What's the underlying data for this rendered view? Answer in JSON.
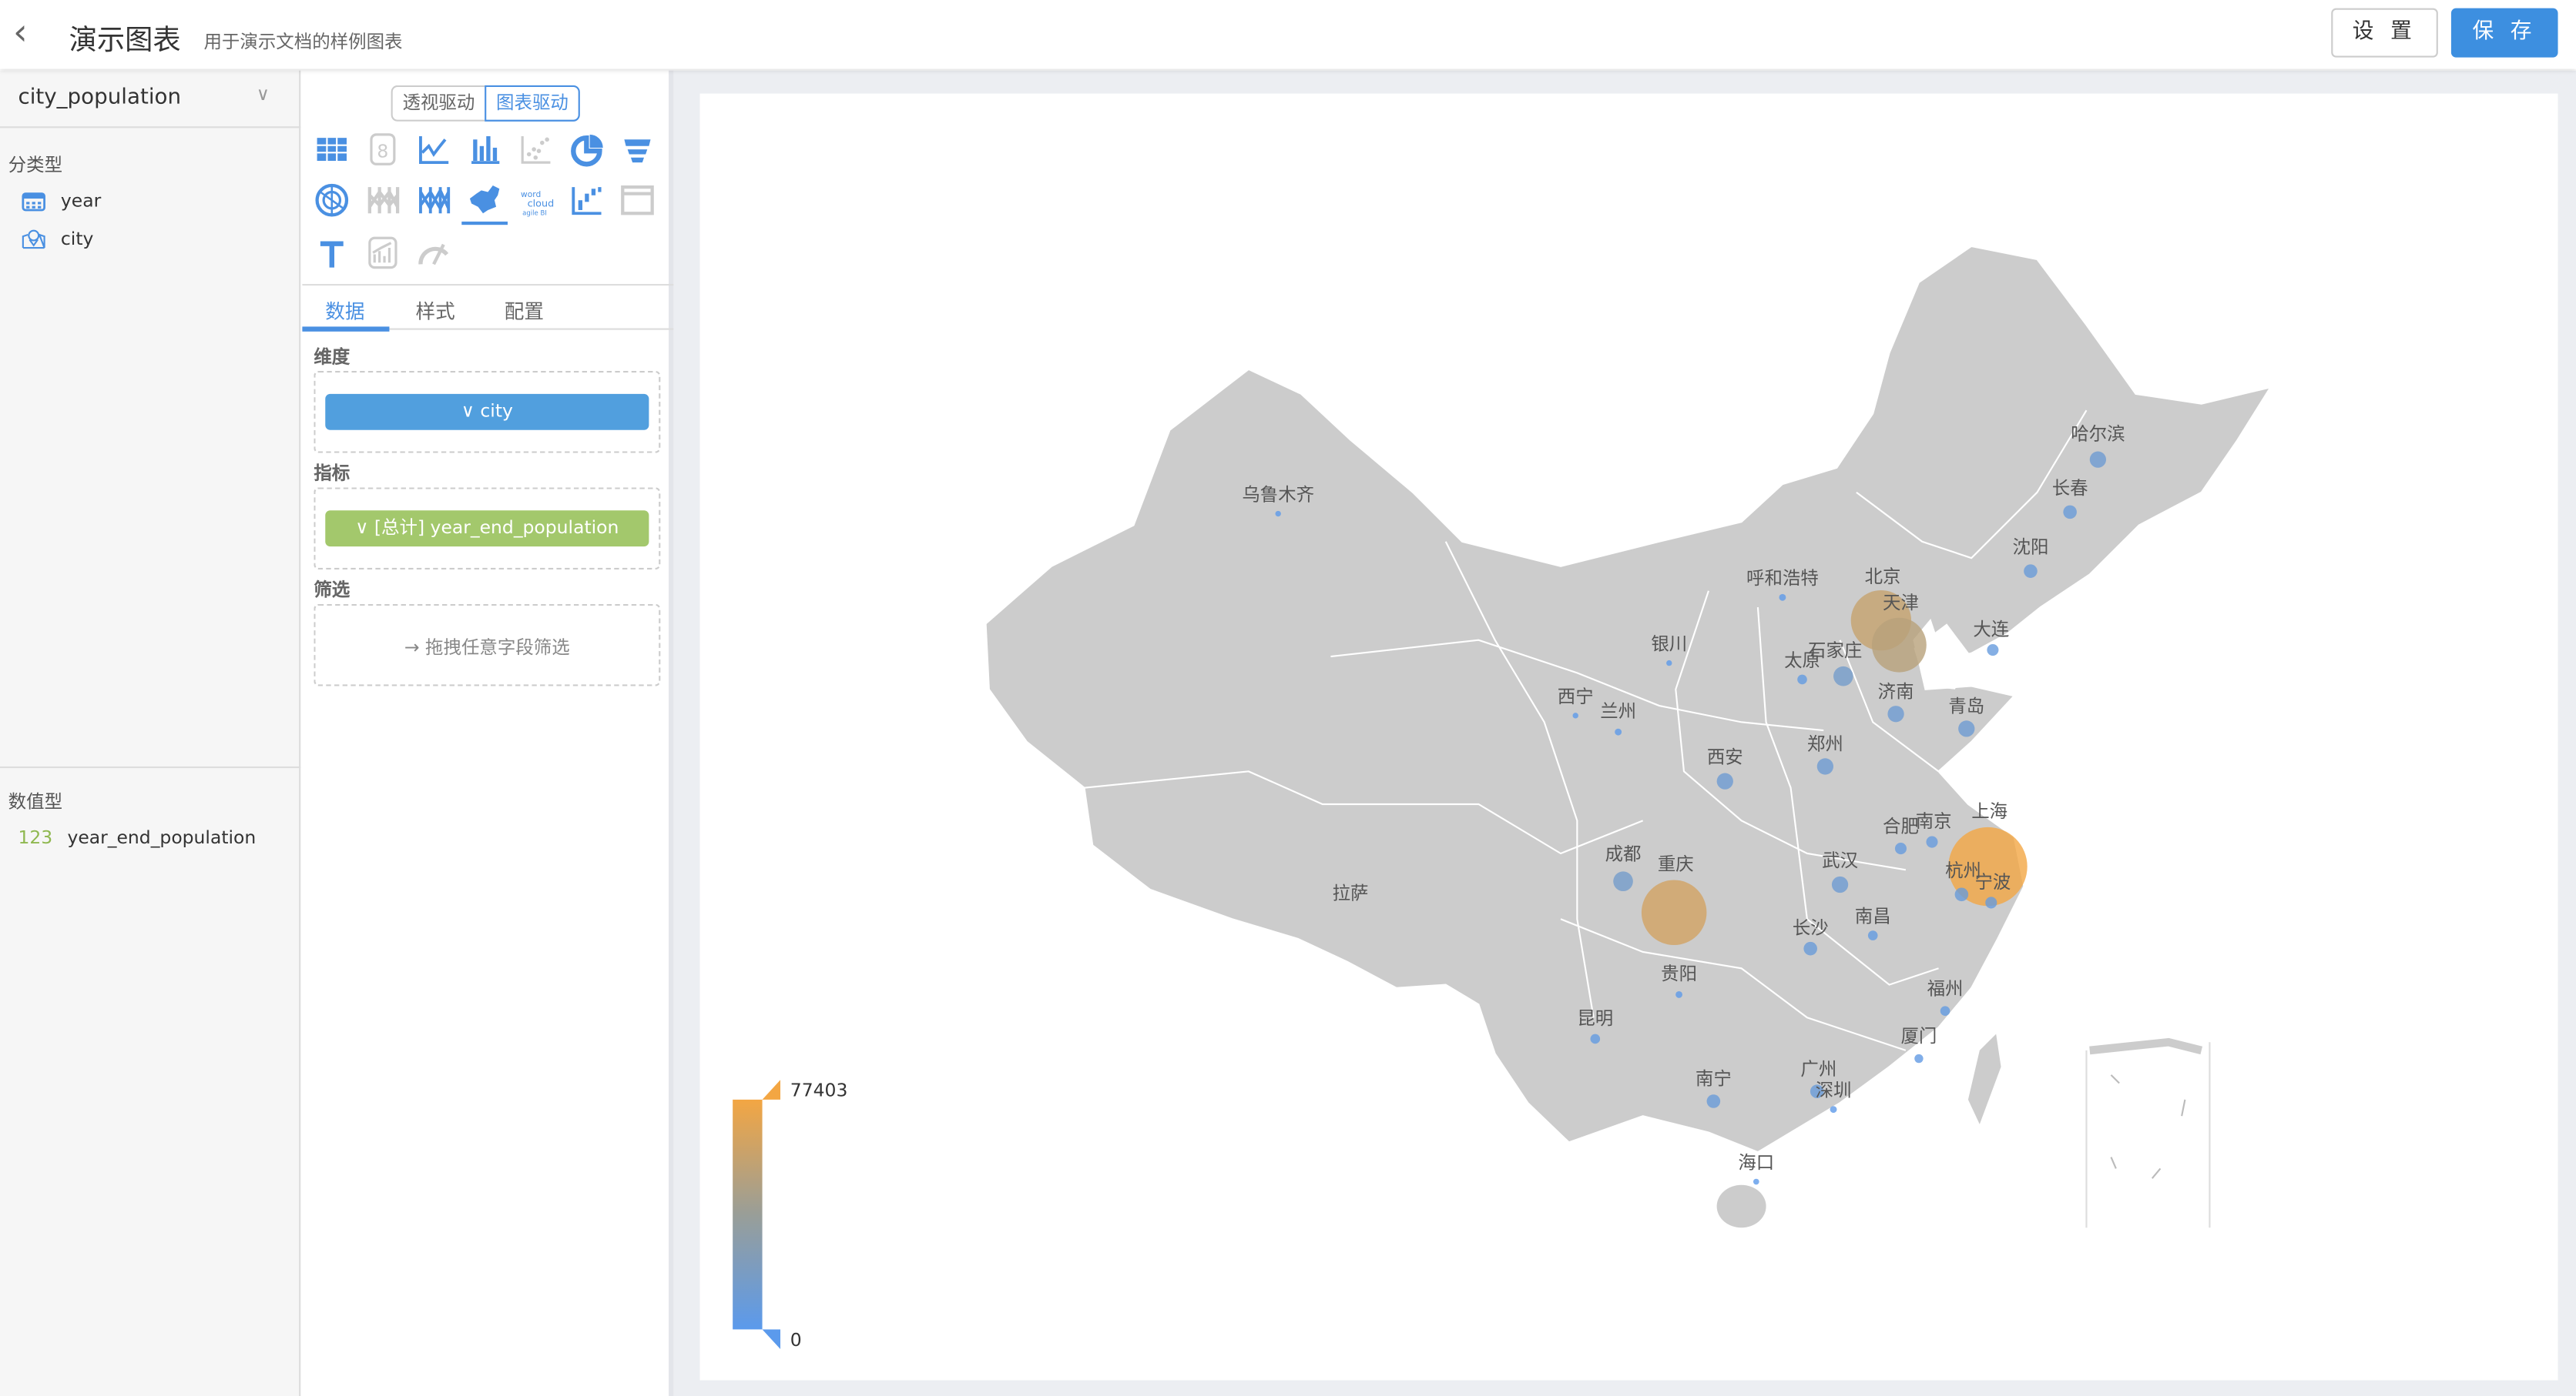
{
  "header": {
    "title": "演示图表",
    "subtitle": "用于演示文档的样例图表",
    "settings_label": "设 置",
    "save_label": "保 存",
    "back_icon": "chevron-left-icon"
  },
  "left_panel": {
    "dataset": "city_population",
    "category_heading": "分类型",
    "category_fields": [
      {
        "name": "year",
        "icon": "calendar-icon"
      },
      {
        "name": "city",
        "icon": "map-pin-icon"
      }
    ],
    "numeric_heading": "数值型",
    "numeric_fields": [
      {
        "name": "year_end_population",
        "icon_text": "123"
      }
    ]
  },
  "config_panel": {
    "mode_toggle": [
      {
        "label": "透视驱动",
        "active": false
      },
      {
        "label": "图表驱动",
        "active": true
      }
    ],
    "chart_types": [
      "table",
      "number-card",
      "line",
      "bar",
      "scatter",
      "pie",
      "funnel",
      "radar",
      "parallel",
      "sankey",
      "china-map",
      "wordcloud",
      "waterfall",
      "iframe",
      "text",
      "dual-axis",
      "gauge"
    ],
    "selected_chart_type": "china-map",
    "tabs": [
      "数据",
      "样式",
      "配置"
    ],
    "active_tab": "数据",
    "dimension_label": "维度",
    "dimension_pill": "city",
    "metric_label": "指标",
    "metric_pill": "[总计] year_end_population",
    "filter_label": "筛选",
    "filter_placeholder": "拖拽任意字段筛选"
  },
  "colors": {
    "accent": "#3d8fe0",
    "dimension_pill": "#519fde",
    "metric_pill": "#a3c86c",
    "map_fill": "#cccccc",
    "scale_low": "#5b9aec",
    "scale_high": "#f3a643"
  },
  "chart_data": {
    "type": "map",
    "map": "china",
    "visual_map": {
      "min": 0,
      "max": 77403,
      "min_label": "0",
      "max_label": "77403"
    },
    "series": [
      {
        "city": "上海",
        "value": 77403
      },
      {
        "city": "重庆",
        "value": 63000
      },
      {
        "city": "北京",
        "value": 58000
      },
      {
        "city": "天津",
        "value": 52000
      },
      {
        "city": "成都",
        "value": 15500
      },
      {
        "city": "石家庄",
        "value": 15500
      },
      {
        "city": "西安",
        "value": 12000
      },
      {
        "city": "郑州",
        "value": 12000
      },
      {
        "city": "武汉",
        "value": 12000
      },
      {
        "city": "济南",
        "value": 12000
      },
      {
        "city": "青岛",
        "value": 12000
      },
      {
        "city": "哈尔滨",
        "value": 12000
      },
      {
        "city": "长春",
        "value": 9000
      },
      {
        "city": "沈阳",
        "value": 9000
      },
      {
        "city": "大连",
        "value": 7000
      },
      {
        "city": "南宁",
        "value": 9000
      },
      {
        "city": "广州",
        "value": 9000
      },
      {
        "city": "杭州",
        "value": 9000
      },
      {
        "city": "长沙",
        "value": 9000
      },
      {
        "city": "合肥",
        "value": 7000
      },
      {
        "city": "南京",
        "value": 7000
      },
      {
        "city": "宁波",
        "value": 7000
      },
      {
        "city": "福州",
        "value": 5000
      },
      {
        "city": "昆明",
        "value": 5000
      },
      {
        "city": "南昌",
        "value": 5000
      },
      {
        "city": "太原",
        "value": 5000
      },
      {
        "city": "厦门",
        "value": 4000
      },
      {
        "city": "深圳",
        "value": 2000
      },
      {
        "city": "贵阳",
        "value": 2000
      },
      {
        "city": "呼和浩特",
        "value": 2000
      },
      {
        "city": "兰州",
        "value": 2000
      },
      {
        "city": "银川",
        "value": 800
      },
      {
        "city": "西宁",
        "value": 800
      },
      {
        "city": "乌鲁木齐",
        "value": 800
      },
      {
        "city": "海口",
        "value": 1000
      },
      {
        "city": "拉萨",
        "value": 0
      }
    ]
  }
}
